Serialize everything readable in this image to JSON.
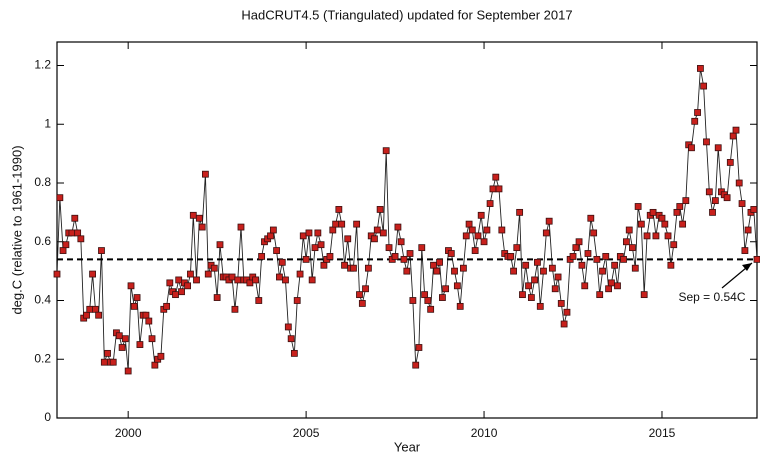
{
  "chart_data": {
    "type": "line",
    "title": "HadCRUT4.5 (Triangulated) updated  for September 2017",
    "x_label": "Year",
    "y_label": "deg.C (relative to 1961-1990)",
    "annotation": "Sep = 0.54C",
    "hline": 0.54,
    "color": "#c8201c",
    "line_color": "#222222",
    "xlim": [
      1998,
      2017.67
    ],
    "xticks": [
      2000,
      2005,
      2010,
      2015
    ],
    "ylim": [
      0,
      1.28
    ],
    "yticks": [
      0,
      0.2,
      0.4,
      0.6,
      0.8,
      1,
      1.2
    ],
    "x": [
      1998,
      1998.08,
      1998.17,
      1998.25,
      1998.33,
      1998.42,
      1998.5,
      1998.58,
      1998.67,
      1998.75,
      1998.83,
      1998.92,
      1999,
      1999.08,
      1999.17,
      1999.25,
      1999.33,
      1999.42,
      1999.5,
      1999.58,
      1999.67,
      1999.75,
      1999.83,
      1999.92,
      2000,
      2000.08,
      2000.17,
      2000.25,
      2000.33,
      2000.42,
      2000.5,
      2000.58,
      2000.67,
      2000.75,
      2000.83,
      2000.92,
      2001,
      2001.08,
      2001.17,
      2001.25,
      2001.33,
      2001.42,
      2001.5,
      2001.58,
      2001.67,
      2001.75,
      2001.83,
      2001.92,
      2002,
      2002.08,
      2002.17,
      2002.25,
      2002.33,
      2002.42,
      2002.5,
      2002.58,
      2002.67,
      2002.75,
      2002.83,
      2002.92,
      2003,
      2003.08,
      2003.17,
      2003.25,
      2003.33,
      2003.42,
      2003.5,
      2003.58,
      2003.67,
      2003.75,
      2003.83,
      2003.92,
      2004,
      2004.08,
      2004.17,
      2004.25,
      2004.33,
      2004.42,
      2004.5,
      2004.58,
      2004.67,
      2004.75,
      2004.83,
      2004.92,
      2005,
      2005.08,
      2005.17,
      2005.25,
      2005.33,
      2005.42,
      2005.5,
      2005.58,
      2005.67,
      2005.75,
      2005.83,
      2005.92,
      2006,
      2006.08,
      2006.17,
      2006.25,
      2006.33,
      2006.42,
      2006.5,
      2006.58,
      2006.67,
      2006.75,
      2006.83,
      2006.92,
      2007,
      2007.08,
      2007.17,
      2007.25,
      2007.33,
      2007.42,
      2007.5,
      2007.58,
      2007.67,
      2007.75,
      2007.83,
      2007.92,
      2008,
      2008.08,
      2008.17,
      2008.25,
      2008.33,
      2008.42,
      2008.5,
      2008.58,
      2008.67,
      2008.75,
      2008.83,
      2008.92,
      2009,
      2009.08,
      2009.17,
      2009.25,
      2009.33,
      2009.42,
      2009.5,
      2009.58,
      2009.67,
      2009.75,
      2009.83,
      2009.92,
      2010,
      2010.08,
      2010.17,
      2010.25,
      2010.33,
      2010.42,
      2010.5,
      2010.58,
      2010.67,
      2010.75,
      2010.83,
      2010.92,
      2011,
      2011.08,
      2011.17,
      2011.25,
      2011.33,
      2011.42,
      2011.5,
      2011.58,
      2011.67,
      2011.75,
      2011.83,
      2011.92,
      2012,
      2012.08,
      2012.17,
      2012.25,
      2012.33,
      2012.42,
      2012.5,
      2012.58,
      2012.67,
      2012.75,
      2012.83,
      2012.92,
      2013,
      2013.08,
      2013.17,
      2013.25,
      2013.33,
      2013.42,
      2013.5,
      2013.58,
      2013.67,
      2013.75,
      2013.83,
      2013.92,
      2014,
      2014.08,
      2014.17,
      2014.25,
      2014.33,
      2014.42,
      2014.5,
      2014.58,
      2014.67,
      2014.75,
      2014.83,
      2014.92,
      2015,
      2015.08,
      2015.17,
      2015.25,
      2015.33,
      2015.42,
      2015.5,
      2015.58,
      2015.67,
      2015.75,
      2015.83,
      2015.92,
      2016,
      2016.08,
      2016.17,
      2016.25,
      2016.33,
      2016.42,
      2016.5,
      2016.58,
      2016.67,
      2016.75,
      2016.83,
      2016.92,
      2017,
      2017.08,
      2017.17,
      2017.25,
      2017.33,
      2017.42,
      2017.5,
      2017.58,
      2017.67
    ],
    "values": [
      0.49,
      0.75,
      0.57,
      0.59,
      0.63,
      0.63,
      0.68,
      0.63,
      0.61,
      0.34,
      0.35,
      0.37,
      0.49,
      0.37,
      0.35,
      0.57,
      0.19,
      0.22,
      0.19,
      0.19,
      0.29,
      0.28,
      0.24,
      0.27,
      0.16,
      0.45,
      0.38,
      0.41,
      0.25,
      0.35,
      0.35,
      0.33,
      0.27,
      0.18,
      0.2,
      0.21,
      0.37,
      0.38,
      0.46,
      0.43,
      0.42,
      0.47,
      0.43,
      0.46,
      0.45,
      0.49,
      0.69,
      0.47,
      0.68,
      0.65,
      0.83,
      0.49,
      0.52,
      0.51,
      0.41,
      0.59,
      0.48,
      0.48,
      0.47,
      0.48,
      0.37,
      0.47,
      0.65,
      0.47,
      0.47,
      0.46,
      0.48,
      0.47,
      0.4,
      0.55,
      0.6,
      0.61,
      0.62,
      0.64,
      0.57,
      0.48,
      0.53,
      0.47,
      0.31,
      0.27,
      0.22,
      0.4,
      0.49,
      0.62,
      0.54,
      0.63,
      0.47,
      0.58,
      0.63,
      0.59,
      0.52,
      0.54,
      0.55,
      0.64,
      0.66,
      0.71,
      0.66,
      0.52,
      0.61,
      0.51,
      0.51,
      0.66,
      0.42,
      0.39,
      0.44,
      0.51,
      0.62,
      0.61,
      0.64,
      0.71,
      0.63,
      0.91,
      0.58,
      0.54,
      0.55,
      0.65,
      0.6,
      0.54,
      0.5,
      0.56,
      0.4,
      0.18,
      0.24,
      0.58,
      0.42,
      0.4,
      0.37,
      0.52,
      0.5,
      0.53,
      0.41,
      0.44,
      0.57,
      0.56,
      0.5,
      0.45,
      0.38,
      0.51,
      0.62,
      0.66,
      0.64,
      0.57,
      0.62,
      0.69,
      0.6,
      0.64,
      0.73,
      0.78,
      0.82,
      0.78,
      0.64,
      0.56,
      0.55,
      0.55,
      0.5,
      0.58,
      0.7,
      0.42,
      0.52,
      0.45,
      0.41,
      0.47,
      0.53,
      0.38,
      0.5,
      0.63,
      0.67,
      0.51,
      0.44,
      0.48,
      0.39,
      0.32,
      0.36,
      0.54,
      0.55,
      0.58,
      0.6,
      0.52,
      0.45,
      0.56,
      0.68,
      0.63,
      0.54,
      0.42,
      0.5,
      0.55,
      0.44,
      0.46,
      0.52,
      0.45,
      0.55,
      0.54,
      0.6,
      0.64,
      0.58,
      0.51,
      0.72,
      0.66,
      0.42,
      0.62,
      0.69,
      0.7,
      0.62,
      0.69,
      0.68,
      0.66,
      0.62,
      0.52,
      0.59,
      0.7,
      0.72,
      0.66,
      0.74,
      0.93,
      0.92,
      1.01,
      1.04,
      1.19,
      1.13,
      0.94,
      0.77,
      0.7,
      0.74,
      0.92,
      0.77,
      0.76,
      0.75,
      0.87,
      0.96,
      0.98,
      0.8,
      0.73,
      0.57,
      0.64,
      0.7,
      0.71,
      0.54
    ]
  }
}
